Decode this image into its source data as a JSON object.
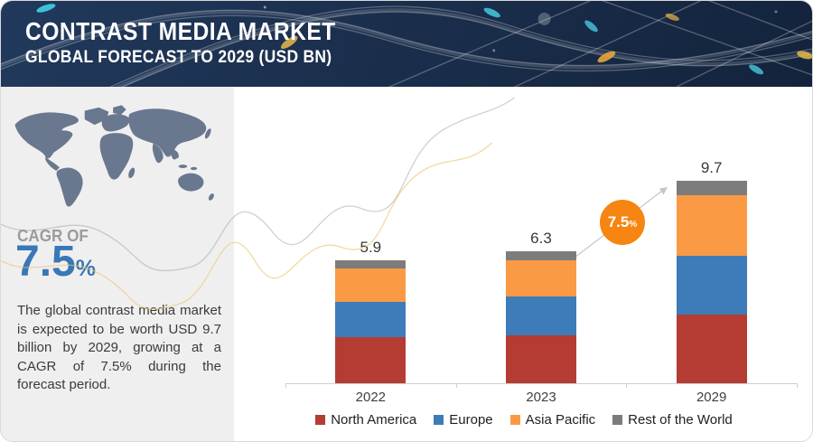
{
  "header": {
    "title": "CONTRAST MEDIA MARKET",
    "subtitle": "GLOBAL FORECAST TO 2029 (USD BN)",
    "background_color": "#1b2f4d",
    "decoration": "network-curves-graphic"
  },
  "sidebar": {
    "map_icon": "world-map",
    "cagr_label": "CAGR OF",
    "cagr_value": "7.5",
    "cagr_unit": "%",
    "cagr_value_color": "#3878b4",
    "description": "The global contrast media market is expected to be worth USD 9.7 billion by 2029, growing at a CAGR of 7.5% during the forecast period.",
    "panel_background": "#f0eff0",
    "map_color": "#69788f"
  },
  "chart_data": {
    "type": "bar",
    "stacked": true,
    "title": "",
    "xlabel": "",
    "ylabel": "",
    "units": "USD BN",
    "grid": false,
    "legend_position": "bottom",
    "ylim": [
      0,
      10
    ],
    "categories": [
      "2022",
      "2023",
      "2029"
    ],
    "series": [
      {
        "name": "North America",
        "color": "#b53c33",
        "values": [
          2.2,
          2.3,
          3.3
        ]
      },
      {
        "name": "Europe",
        "color": "#3d7cb8",
        "values": [
          1.7,
          1.85,
          2.8
        ]
      },
      {
        "name": "Asia Pacific",
        "color": "#fb9a45",
        "values": [
          1.6,
          1.75,
          2.9
        ]
      },
      {
        "name": "Rest of the World",
        "color": "#7c7c7c",
        "values": [
          0.4,
          0.4,
          0.7
        ]
      }
    ],
    "totals": [
      5.9,
      6.3,
      9.7
    ],
    "total_labels": [
      "5.9",
      "6.3",
      "9.7"
    ],
    "annotation": {
      "text": "7.5",
      "unit": "%",
      "color": "#f68511",
      "meaning": "CAGR growth arrow badge between 2023 and 2029"
    }
  }
}
